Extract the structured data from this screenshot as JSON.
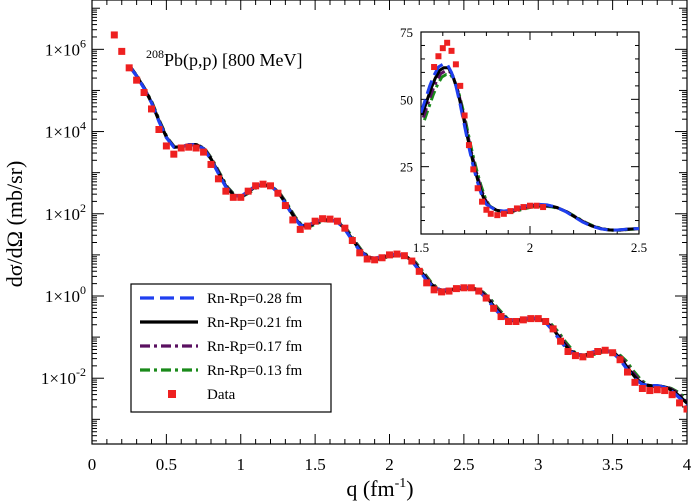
{
  "chart_data": [
    {
      "id": "main",
      "type": "line",
      "yscale": "log",
      "title": "208Pb(p,p) [800 MeV]",
      "title_parts": {
        "mass_number": "208",
        "reaction": "Pb(p,p) [800 MeV]"
      },
      "xlabel": {
        "main": "q (fm",
        "sup": "-1",
        "tail": ")"
      },
      "ylabel": "dσ/dΩ (mb/sr)",
      "xlim": [
        0,
        4
      ],
      "ylim_log10": [
        -3.6,
        7.2
      ],
      "x_ticks": [
        {
          "value": 0,
          "label": "0"
        },
        {
          "value": 0.5,
          "label": "0.5"
        },
        {
          "value": 1,
          "label": "1"
        },
        {
          "value": 1.5,
          "label": "1.5"
        },
        {
          "value": 2,
          "label": "2"
        },
        {
          "value": 2.5,
          "label": "2.5"
        },
        {
          "value": 3,
          "label": "3"
        },
        {
          "value": 3.5,
          "label": "3.5"
        },
        {
          "value": 4,
          "label": "4"
        }
      ],
      "y_ticks": [
        {
          "exp": 6,
          "base": "1×10",
          "sup": "6"
        },
        {
          "exp": 4,
          "base": "1×10",
          "sup": "4"
        },
        {
          "exp": 2,
          "base": "1×10",
          "sup": "2"
        },
        {
          "exp": 0,
          "base": "1×10",
          "sup": "0"
        },
        {
          "exp": -2,
          "base": "1×10",
          "sup": "-2"
        }
      ],
      "legend_position": "bottom-left",
      "series": [
        {
          "name": "Rn-Rp=0.28 fm",
          "color": "#1f3ff0",
          "style": "dashed",
          "drift": 0.0,
          "scale": 1.0
        },
        {
          "name": "Rn-Rp=0.21 fm",
          "color": "#000000",
          "style": "solid",
          "drift": 0.015,
          "scale": 0.98
        },
        {
          "name": "Rn-Rp=0.17 fm",
          "color": "#5a1060",
          "style": "dash-dot",
          "drift": 0.03,
          "scale": 0.96
        },
        {
          "name": "Rn-Rp=0.13 fm",
          "color": "#1a8a1a",
          "style": "dash-dot",
          "drift": 0.045,
          "scale": 0.94
        },
        {
          "name": "Data",
          "color": "#ee2020",
          "style": "markers"
        }
      ],
      "data_points": [
        [
          0.15,
          6.35
        ],
        [
          0.2,
          5.95
        ],
        [
          0.25,
          5.55
        ],
        [
          0.3,
          5.25
        ],
        [
          0.35,
          4.95
        ],
        [
          0.4,
          4.55
        ],
        [
          0.45,
          4.05
        ],
        [
          0.5,
          3.65
        ],
        [
          0.55,
          3.45
        ],
        [
          0.6,
          3.6
        ],
        [
          0.65,
          3.62
        ],
        [
          0.7,
          3.6
        ],
        [
          0.75,
          3.5
        ],
        [
          0.8,
          3.2
        ],
        [
          0.85,
          2.85
        ],
        [
          0.9,
          2.55
        ],
        [
          0.95,
          2.4
        ],
        [
          1.0,
          2.4
        ],
        [
          1.05,
          2.55
        ],
        [
          1.1,
          2.68
        ],
        [
          1.15,
          2.72
        ],
        [
          1.2,
          2.68
        ],
        [
          1.25,
          2.5
        ],
        [
          1.3,
          2.2
        ],
        [
          1.35,
          1.85
        ],
        [
          1.4,
          1.62
        ],
        [
          1.45,
          1.7
        ],
        [
          1.5,
          1.82
        ],
        [
          1.55,
          1.88
        ],
        [
          1.6,
          1.87
        ],
        [
          1.65,
          1.82
        ],
        [
          1.7,
          1.65
        ],
        [
          1.75,
          1.35
        ],
        [
          1.8,
          1.05
        ],
        [
          1.85,
          0.9
        ],
        [
          1.9,
          0.88
        ],
        [
          1.95,
          0.93
        ],
        [
          2.0,
          1.0
        ],
        [
          2.05,
          1.02
        ],
        [
          2.1,
          0.98
        ],
        [
          2.15,
          0.85
        ],
        [
          2.2,
          0.6
        ],
        [
          2.25,
          0.32
        ],
        [
          2.3,
          0.15
        ],
        [
          2.35,
          0.1
        ],
        [
          2.4,
          0.12
        ],
        [
          2.45,
          0.18
        ],
        [
          2.5,
          0.2
        ],
        [
          2.55,
          0.2
        ],
        [
          2.6,
          0.12
        ],
        [
          2.65,
          -0.05
        ],
        [
          2.7,
          -0.3
        ],
        [
          2.75,
          -0.5
        ],
        [
          2.8,
          -0.62
        ],
        [
          2.85,
          -0.62
        ],
        [
          2.9,
          -0.58
        ],
        [
          2.95,
          -0.55
        ],
        [
          3.0,
          -0.55
        ],
        [
          3.05,
          -0.62
        ],
        [
          3.1,
          -0.8
        ],
        [
          3.15,
          -1.1
        ],
        [
          3.2,
          -1.35
        ],
        [
          3.25,
          -1.45
        ],
        [
          3.3,
          -1.48
        ],
        [
          3.35,
          -1.42
        ],
        [
          3.4,
          -1.35
        ],
        [
          3.45,
          -1.32
        ],
        [
          3.5,
          -1.38
        ],
        [
          3.55,
          -1.55
        ],
        [
          3.6,
          -1.85
        ],
        [
          3.65,
          -2.1
        ],
        [
          3.7,
          -2.25
        ],
        [
          3.75,
          -2.3
        ],
        [
          3.8,
          -2.28
        ],
        [
          3.85,
          -2.3
        ],
        [
          3.9,
          -2.4
        ],
        [
          3.95,
          -2.6
        ],
        [
          4.0,
          -2.75
        ]
      ],
      "theory_curve_log10": [
        [
          0.25,
          5.6
        ],
        [
          0.3,
          5.35
        ],
        [
          0.35,
          5.05
        ],
        [
          0.4,
          4.7
        ],
        [
          0.45,
          4.25
        ],
        [
          0.5,
          3.85
        ],
        [
          0.55,
          3.62
        ],
        [
          0.6,
          3.63
        ],
        [
          0.65,
          3.68
        ],
        [
          0.7,
          3.68
        ],
        [
          0.75,
          3.58
        ],
        [
          0.8,
          3.32
        ],
        [
          0.85,
          2.98
        ],
        [
          0.9,
          2.65
        ],
        [
          0.95,
          2.45
        ],
        [
          1.0,
          2.42
        ],
        [
          1.05,
          2.55
        ],
        [
          1.1,
          2.68
        ],
        [
          1.15,
          2.72
        ],
        [
          1.2,
          2.68
        ],
        [
          1.25,
          2.52
        ],
        [
          1.3,
          2.25
        ],
        [
          1.35,
          1.95
        ],
        [
          1.4,
          1.72
        ],
        [
          1.45,
          1.72
        ],
        [
          1.5,
          1.8
        ],
        [
          1.55,
          1.86
        ],
        [
          1.6,
          1.86
        ],
        [
          1.65,
          1.8
        ],
        [
          1.7,
          1.62
        ],
        [
          1.75,
          1.35
        ],
        [
          1.8,
          1.1
        ],
        [
          1.85,
          0.95
        ],
        [
          1.9,
          0.92
        ],
        [
          1.95,
          0.96
        ],
        [
          2.0,
          1.0
        ],
        [
          2.05,
          1.02
        ],
        [
          2.1,
          0.98
        ],
        [
          2.15,
          0.85
        ],
        [
          2.2,
          0.62
        ],
        [
          2.25,
          0.38
        ],
        [
          2.3,
          0.2
        ],
        [
          2.35,
          0.14
        ],
        [
          2.4,
          0.16
        ],
        [
          2.45,
          0.2
        ],
        [
          2.5,
          0.22
        ],
        [
          2.55,
          0.2
        ],
        [
          2.6,
          0.12
        ],
        [
          2.65,
          -0.05
        ],
        [
          2.7,
          -0.28
        ],
        [
          2.75,
          -0.48
        ],
        [
          2.8,
          -0.58
        ],
        [
          2.85,
          -0.58
        ],
        [
          2.9,
          -0.55
        ],
        [
          2.95,
          -0.53
        ],
        [
          3.0,
          -0.55
        ],
        [
          3.05,
          -0.65
        ],
        [
          3.1,
          -0.85
        ],
        [
          3.15,
          -1.1
        ],
        [
          3.2,
          -1.32
        ],
        [
          3.25,
          -1.42
        ],
        [
          3.3,
          -1.43
        ],
        [
          3.35,
          -1.38
        ],
        [
          3.4,
          -1.33
        ],
        [
          3.45,
          -1.32
        ],
        [
          3.5,
          -1.38
        ],
        [
          3.55,
          -1.55
        ],
        [
          3.6,
          -1.8
        ],
        [
          3.65,
          -2.02
        ],
        [
          3.7,
          -2.15
        ],
        [
          3.75,
          -2.18
        ],
        [
          3.8,
          -2.18
        ],
        [
          3.85,
          -2.22
        ],
        [
          3.9,
          -2.32
        ],
        [
          3.95,
          -2.48
        ],
        [
          4.0,
          -2.65
        ]
      ]
    },
    {
      "id": "inset",
      "type": "line",
      "yscale": "linear",
      "xlim": [
        1.5,
        2.5
      ],
      "ylim": [
        0,
        75
      ],
      "x_ticks": [
        {
          "value": 1.5,
          "label": "1.5"
        },
        {
          "value": 2,
          "label": "2"
        },
        {
          "value": 2.5,
          "label": "2.5"
        }
      ],
      "y_ticks": [
        {
          "value": 25,
          "label": "25"
        },
        {
          "value": 50,
          "label": "50"
        },
        {
          "value": 75,
          "label": "75"
        }
      ],
      "data_points": [
        [
          1.56,
          62
        ],
        [
          1.58,
          66
        ],
        [
          1.6,
          69
        ],
        [
          1.62,
          71
        ],
        [
          1.64,
          68
        ],
        [
          1.66,
          63
        ],
        [
          1.68,
          55
        ],
        [
          1.7,
          44
        ],
        [
          1.72,
          33
        ],
        [
          1.74,
          24
        ],
        [
          1.76,
          17
        ],
        [
          1.78,
          12
        ],
        [
          1.8,
          9
        ],
        [
          1.82,
          7.5
        ],
        [
          1.85,
          7
        ],
        [
          1.88,
          7.5
        ],
        [
          1.91,
          8.5
        ],
        [
          1.94,
          9.5
        ],
        [
          1.97,
          10
        ],
        [
          2.0,
          10.5
        ],
        [
          2.03,
          10.5
        ],
        [
          2.06,
          10
        ]
      ],
      "theory_curve": [
        [
          1.5,
          45
        ],
        [
          1.52,
          50
        ],
        [
          1.54,
          55
        ],
        [
          1.56,
          59
        ],
        [
          1.58,
          62
        ],
        [
          1.6,
          63
        ],
        [
          1.62,
          63
        ],
        [
          1.64,
          60
        ],
        [
          1.66,
          55
        ],
        [
          1.68,
          48
        ],
        [
          1.7,
          40
        ],
        [
          1.72,
          32
        ],
        [
          1.74,
          25
        ],
        [
          1.76,
          19
        ],
        [
          1.78,
          14
        ],
        [
          1.8,
          11
        ],
        [
          1.84,
          9
        ],
        [
          1.88,
          8.5
        ],
        [
          1.92,
          9
        ],
        [
          1.96,
          10
        ],
        [
          2.0,
          10.8
        ],
        [
          2.04,
          11
        ],
        [
          2.08,
          10.8
        ],
        [
          2.12,
          10
        ],
        [
          2.16,
          8.5
        ],
        [
          2.2,
          6.5
        ],
        [
          2.24,
          4.5
        ],
        [
          2.28,
          3
        ],
        [
          2.32,
          2
        ],
        [
          2.36,
          1.5
        ],
        [
          2.4,
          1.5
        ],
        [
          2.44,
          1.8
        ],
        [
          2.48,
          2
        ],
        [
          2.5,
          2
        ]
      ]
    }
  ]
}
